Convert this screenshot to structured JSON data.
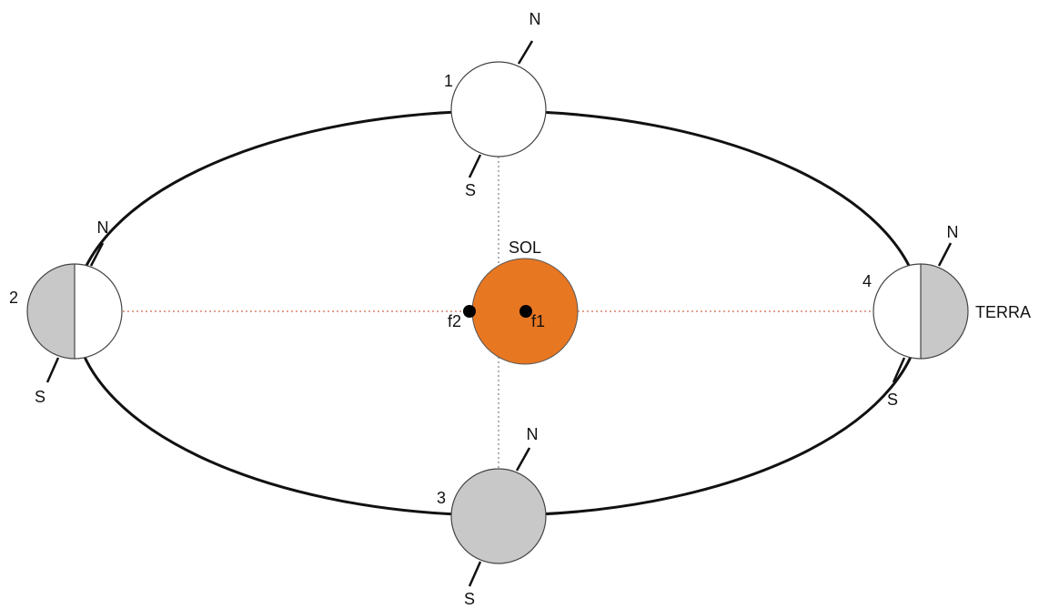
{
  "sun": {
    "label": "SOL"
  },
  "foci": [
    {
      "label": "f1"
    },
    {
      "label": "f2"
    }
  ],
  "positions": [
    {
      "number": "1",
      "north": "N",
      "south": "S"
    },
    {
      "number": "2",
      "north": "N",
      "south": "S"
    },
    {
      "number": "3",
      "north": "N",
      "south": "S"
    },
    {
      "number": "4",
      "north": "N",
      "south": "S"
    }
  ],
  "earth_label": "TERRA"
}
